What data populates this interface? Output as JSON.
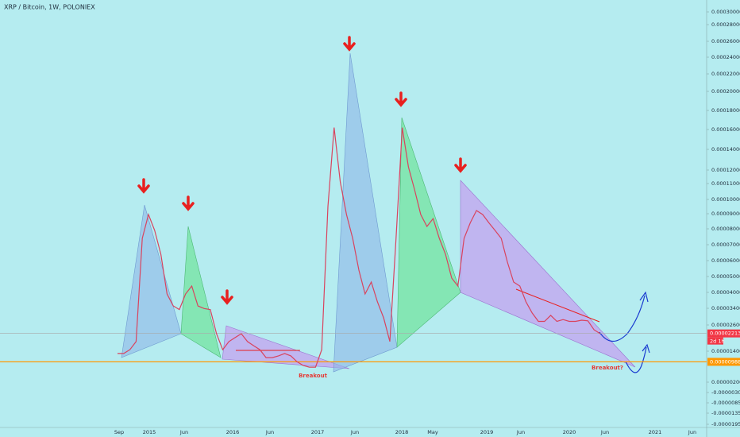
{
  "header": {
    "title": "XRP / Bitcoin, 1W, POLONIEX"
  },
  "chart_data": {
    "type": "line",
    "color": "#d9435e",
    "values": [
      1.31e-05,
      1.31e-05,
      1.47e-05,
      1.84e-05,
      7.4e-05,
      8.95e-05,
      7.9e-05,
      6.4e-05,
      3.94e-05,
      3.49e-05,
      3.34e-05,
      3.94e-05,
      4.4e-05,
      3.49e-05,
      3.39e-05,
      3.34e-05,
      2.2e-05,
      1.47e-05,
      1.84e-05,
      2.02e-05,
      2.2e-05,
      1.84e-05,
      1.65e-05,
      1.47e-05,
      1.15e-05,
      1.15e-05,
      1.22e-05,
      1.31e-05,
      1.22e-05,
      9.9e-06,
      8.5e-06,
      7.8e-06,
      7.8e-06,
      1.47e-05,
      9.5e-05,
      0.000162,
      0.000111,
      8.95e-05,
      7.4e-05,
      5.4e-05,
      3.94e-05,
      4.65e-05,
      3.64e-05,
      2.94e-05,
      1.84e-05,
      7.4e-05,
      0.000162,
      0.000123,
      0.000106,
      8.95e-05,
      8.16e-05,
      8.68e-05,
      7.4e-05,
      6.4e-05,
      4.9e-05,
      4.4e-05,
      7.4e-05,
      8.4e-05,
      9.22e-05,
      8.95e-05,
      8.4e-05,
      7.9e-05,
      7.4e-05,
      5.9e-05,
      4.65e-05,
      4.4e-05,
      3.64e-05,
      3.17e-05,
      2.77e-05,
      2.77e-05,
      3.06e-05,
      2.77e-05,
      2.86e-05,
      2.77e-05,
      2.77e-05,
      2.83e-05,
      2.8e-05,
      2.38e-05,
      2.2e-05
    ],
    "ylim": [
      -1.95e-05,
      0.0003
    ],
    "yticks": [
      {
        "value": 0.0003,
        "label": "0.00030000"
      },
      {
        "value": 0.00028,
        "label": "0.00028000"
      },
      {
        "value": 0.00026,
        "label": "0.00026000"
      },
      {
        "value": 0.00024,
        "label": "0.00024000"
      },
      {
        "value": 0.00022,
        "label": "0.00022000"
      },
      {
        "value": 0.0002,
        "label": "0.00020000"
      },
      {
        "value": 0.00018,
        "label": "0.00018000"
      },
      {
        "value": 0.00016,
        "label": "0.00016000"
      },
      {
        "value": 0.00014,
        "label": "0.00014000"
      },
      {
        "value": 0.00012,
        "label": "0.00012000"
      },
      {
        "value": 0.00011,
        "label": "0.00011000"
      },
      {
        "value": 0.0001,
        "label": "0.00010000"
      },
      {
        "value": 9e-05,
        "label": "0.00009000"
      },
      {
        "value": 8e-05,
        "label": "0.00008000"
      },
      {
        "value": 7e-05,
        "label": "0.00007000"
      },
      {
        "value": 6e-05,
        "label": "0.00006000"
      },
      {
        "value": 5e-05,
        "label": "0.00005000"
      },
      {
        "value": 4e-05,
        "label": "0.00004000"
      },
      {
        "value": 3.4e-05,
        "label": "0.00003400"
      },
      {
        "value": 2.6e-05,
        "label": "0.00002600"
      },
      {
        "value": 1.4e-05,
        "label": "0.00001400"
      },
      {
        "value": 2e-06,
        "label": "0.00000200"
      },
      {
        "value": -3e-06,
        "label": "-0.00000300"
      },
      {
        "value": -8.5e-06,
        "label": "-0.00000850"
      },
      {
        "value": -1.35e-05,
        "label": "-0.00001350"
      },
      {
        "value": -1.95e-05,
        "label": "-0.00001950"
      }
    ],
    "time_labels": [
      "Sep",
      "2015",
      "Jun",
      "2016",
      "Jun",
      "2017",
      "Jun",
      "2018",
      "May",
      "2019",
      "Jun",
      "2020",
      "Jun",
      "2021",
      "Jun"
    ],
    "price_labels": [
      {
        "value": 2.213e-05,
        "label": "0.00002213",
        "color": "#f23645"
      },
      {
        "value": 9.88e-06,
        "label": "0.00000988",
        "color": "#ff9800"
      }
    ],
    "countdown": "2d 1h",
    "annotations": [
      "Breakout",
      "Breakout?"
    ]
  }
}
